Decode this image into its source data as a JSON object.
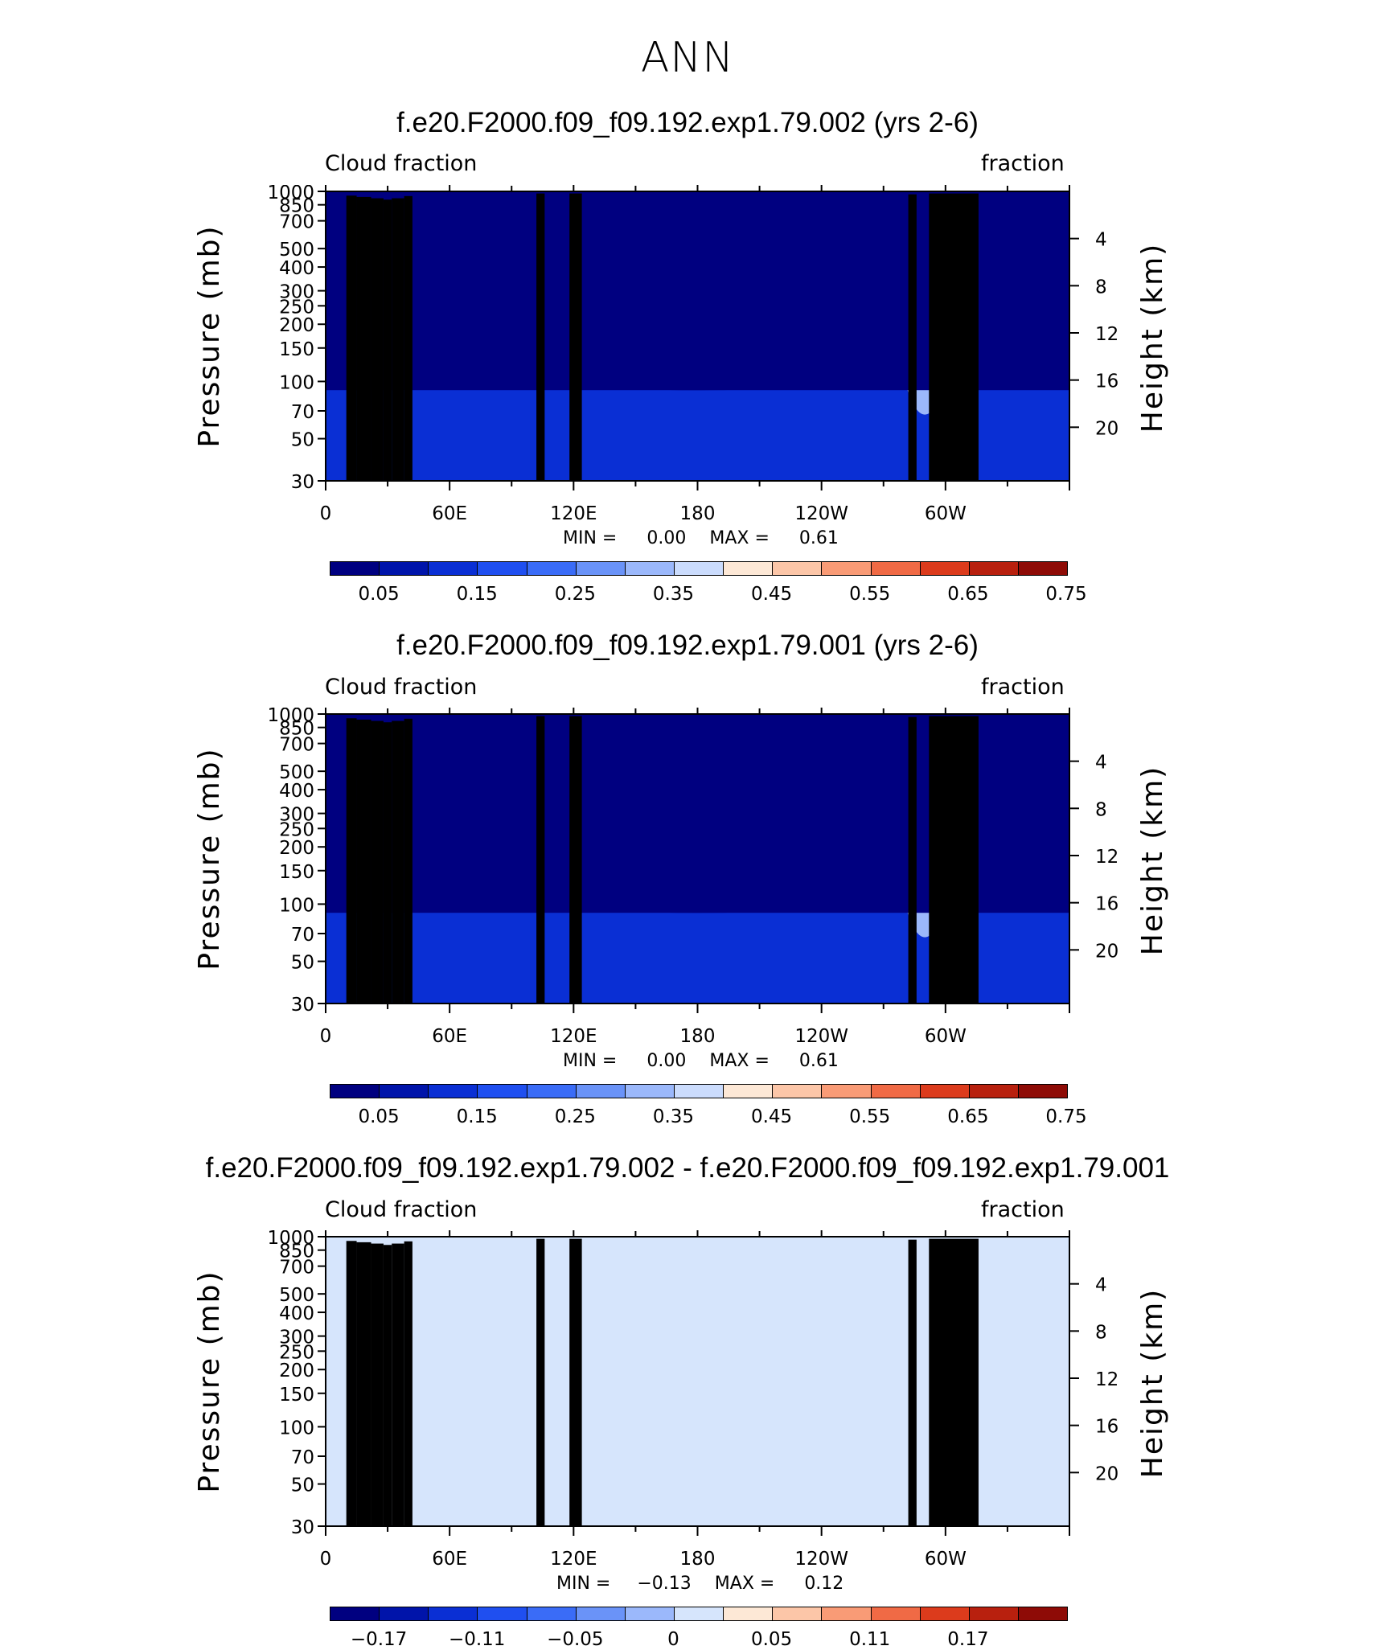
{
  "page_title": "ANN",
  "colors": {
    "full_field_palette": [
      "#000080",
      "#0014aa",
      "#0a2fd4",
      "#1f4ff0",
      "#3a6cf7",
      "#6a93f8",
      "#9bb8fb",
      "#cbdcfd",
      "#fde8d6",
      "#fcc6a8",
      "#f99b76",
      "#f06a45",
      "#dc3b1c",
      "#b8200e",
      "#8e0b06"
    ],
    "diff_palette": [
      "#000080",
      "#0014aa",
      "#0a2fd4",
      "#1f4ff0",
      "#3a6cf7",
      "#6a93f8",
      "#9bb8fb",
      "#d6e5fc",
      "#fde8d6",
      "#fcc6a8",
      "#f99b76",
      "#f06a45",
      "#dc3b1c",
      "#b8200e",
      "#8e0b06"
    ],
    "topography": "#000000"
  },
  "panels": [
    {
      "title": "f.e20.F2000.f09_f09.192.exp1.79.002 (yrs 2-6)",
      "left_label": "Cloud fraction",
      "right_label": "fraction",
      "min_label": "MIN =",
      "min_value": "0.00",
      "max_label": "MAX =",
      "max_value": "0.61",
      "colorbar_labels": [
        "0.05",
        "0.15",
        "0.25",
        "0.35",
        "0.45",
        "0.55",
        "0.65",
        "0.75"
      ]
    },
    {
      "title": "f.e20.F2000.f09_f09.192.exp1.79.001 (yrs 2-6)",
      "left_label": "Cloud fraction",
      "right_label": "fraction",
      "min_label": "MIN =",
      "min_value": "0.00",
      "max_label": "MAX =",
      "max_value": "0.61",
      "colorbar_labels": [
        "0.05",
        "0.15",
        "0.25",
        "0.35",
        "0.45",
        "0.55",
        "0.65",
        "0.75"
      ]
    },
    {
      "title": "f.e20.F2000.f09_f09.192.exp1.79.002 - f.e20.F2000.f09_f09.192.exp1.79.001",
      "left_label": "Cloud fraction",
      "right_label": "fraction",
      "min_label": "MIN =",
      "min_value": "−0.13",
      "max_label": "MAX =",
      "max_value": "0.12",
      "colorbar_labels": [
        "−0.17",
        "−0.11",
        "−0.05",
        "0",
        "0.05",
        "0.11",
        "0.17"
      ]
    }
  ],
  "axes": {
    "y_left_title": "Pressure (mb)",
    "y_right_title": "Height (km)",
    "pressure_ticks": [
      "30",
      "50",
      "70",
      "100",
      "150",
      "200",
      "250",
      "300",
      "400",
      "500",
      "700",
      "850",
      "1000"
    ],
    "height_ticks": [
      "20",
      "16",
      "12",
      "8",
      "4"
    ],
    "longitude_ticks": [
      "0",
      "60E",
      "120E",
      "180",
      "120W",
      "60W"
    ]
  },
  "chart_data": [
    {
      "type": "heatmap",
      "title": "f.e20.F2000.f09_f09.192.exp1.79.002 (yrs 2-6)",
      "ylabel": "Pressure (mb)",
      "ylabel_right": "Height (km)",
      "x_ticks": [
        "0",
        "60E",
        "120E",
        "180",
        "120W",
        "60W"
      ],
      "xlim": [
        0,
        360
      ],
      "ylim": [
        1000,
        30
      ],
      "y_scale": "log",
      "levels": [
        0.05,
        0.1,
        0.15,
        0.2,
        0.25,
        0.3,
        0.35,
        0.4,
        0.45,
        0.5,
        0.55,
        0.6,
        0.65,
        0.7,
        0.75
      ],
      "min": 0.0,
      "max": 0.61
    },
    {
      "type": "heatmap",
      "title": "f.e20.F2000.f09_f09.192.exp1.79.001 (yrs 2-6)",
      "ylabel": "Pressure (mb)",
      "ylabel_right": "Height (km)",
      "x_ticks": [
        "0",
        "60E",
        "120E",
        "180",
        "120W",
        "60W"
      ],
      "xlim": [
        0,
        360
      ],
      "ylim": [
        1000,
        30
      ],
      "y_scale": "log",
      "levels": [
        0.05,
        0.1,
        0.15,
        0.2,
        0.25,
        0.3,
        0.35,
        0.4,
        0.45,
        0.5,
        0.55,
        0.6,
        0.65,
        0.7,
        0.75
      ],
      "min": 0.0,
      "max": 0.61
    },
    {
      "type": "heatmap",
      "title": "f.e20.F2000.f09_f09.192.exp1.79.002 - f.e20.F2000.f09_f09.192.exp1.79.001",
      "ylabel": "Pressure (mb)",
      "ylabel_right": "Height (km)",
      "x_ticks": [
        "0",
        "60E",
        "120E",
        "180",
        "120W",
        "60W"
      ],
      "xlim": [
        0,
        360
      ],
      "ylim": [
        1000,
        30
      ],
      "y_scale": "log",
      "levels": [
        -0.17,
        -0.14,
        -0.11,
        -0.08,
        -0.05,
        -0.02,
        0,
        0.02,
        0.05,
        0.08,
        0.11,
        0.14,
        0.17
      ],
      "min": -0.13,
      "max": 0.12
    }
  ]
}
